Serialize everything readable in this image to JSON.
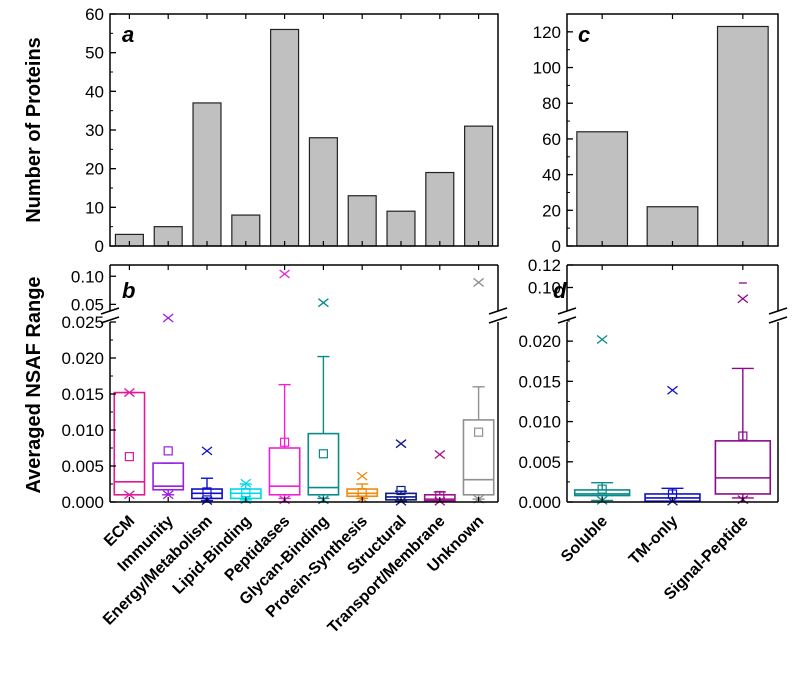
{
  "chart_data": [
    {
      "panel": "a",
      "type": "bar",
      "ylabel": "Number of Proteins",
      "ylim": [
        0,
        60
      ],
      "yticks": [
        0,
        10,
        20,
        30,
        40,
        50,
        60
      ],
      "categories": [
        "ECM",
        "Immunity",
        "Energy/Metabolism",
        "Lipid-Binding",
        "Peptidases",
        "Glycan-Binding",
        "Protein-Synthesis",
        "Structural",
        "Transport/Membrane",
        "Unknown"
      ],
      "values": [
        3,
        5,
        37,
        8,
        56,
        28,
        13,
        9,
        19,
        31
      ],
      "bar_color": "#c0c0c0"
    },
    {
      "panel": "b",
      "type": "box",
      "ylabel": "Averaged NSAF Range",
      "ylim_lower": [
        0,
        0.025
      ],
      "yticks_lower": [
        "0.000",
        "0.005",
        "0.010",
        "0.015",
        "0.020",
        "0.025"
      ],
      "ylim_upper": [
        0.04,
        0.12
      ],
      "yticks_upper": [
        "0.05",
        "0.10"
      ],
      "categories": [
        "ECM",
        "Immunity",
        "Energy/Metabolism",
        "Lipid-Binding",
        "Peptidases",
        "Glycan-Binding",
        "Protein-Synthesis",
        "Structural",
        "Transport/Membrane",
        "Unknown"
      ],
      "boxes": [
        {
          "q1": 0.001,
          "median": 0.0028,
          "q3": 0.0152,
          "wlo": 0.001,
          "whi": 0.0152,
          "mean": 0.0063,
          "xmin": 0.001,
          "xmax": 0.0152,
          "color": "#e0199a"
        },
        {
          "q1": 0.0017,
          "median": 0.0022,
          "q3": 0.0054,
          "wlo": 0.001,
          "whi": 0.0054,
          "mean": 0.0071,
          "xmin": 0.001,
          "xmax": 0.0258,
          "color": "#9b1fe0"
        },
        {
          "q1": 0.0005,
          "median": 0.0012,
          "q3": 0.0018,
          "wlo": 0.0002,
          "whi": 0.0033,
          "mean": 0.0014,
          "xmin": 0.0002,
          "xmax": 0.0071,
          "color": "#1010cc"
        },
        {
          "q1": 0.0005,
          "median": 0.0012,
          "q3": 0.0018,
          "wlo": 0.0003,
          "whi": 0.0025,
          "mean": 0.0013,
          "xmin": 0.0003,
          "xmax": 0.0026,
          "color": "#00d8e8"
        },
        {
          "q1": 0.001,
          "median": 0.0022,
          "q3": 0.0075,
          "wlo": 0.0005,
          "whi": 0.0163,
          "mean": 0.0083,
          "xmin": 0.0003,
          "xmax": 0.104,
          "color": "#f020d8"
        },
        {
          "q1": 0.001,
          "median": 0.002,
          "q3": 0.0095,
          "wlo": 0.0005,
          "whi": 0.0202,
          "mean": 0.0067,
          "xmin": 0.0003,
          "xmax": 0.053,
          "color": "#0a8a8a"
        },
        {
          "q1": 0.0008,
          "median": 0.0012,
          "q3": 0.0018,
          "wlo": 0.0005,
          "whi": 0.0025,
          "mean": 0.0013,
          "xmin": 0.0005,
          "xmax": 0.0036,
          "color": "#f08a10"
        },
        {
          "q1": 0.0003,
          "median": 0.0007,
          "q3": 0.0012,
          "wlo": 0.0001,
          "whi": 0.0015,
          "mean": 0.0016,
          "xmin": 0.0001,
          "xmax": 0.0081,
          "color": "#0c1a8c"
        },
        {
          "q1": 0.0002,
          "median": 0.0004,
          "q3": 0.001,
          "wlo": 0.0001,
          "whi": 0.0014,
          "mean": 0.0009,
          "xmin": 0.0001,
          "xmax": 0.0066,
          "color": "#a0108a"
        },
        {
          "q1": 0.001,
          "median": 0.0031,
          "q3": 0.0114,
          "wlo": 0.0004,
          "whi": 0.016,
          "mean": 0.0097,
          "xmin": 0.0004,
          "xmax": 0.089,
          "color": "#909090"
        }
      ]
    },
    {
      "panel": "c",
      "type": "bar",
      "ylim": [
        0,
        130
      ],
      "yticks": [
        0,
        20,
        40,
        60,
        80,
        100,
        120
      ],
      "categories": [
        "Soluble",
        "TM-only",
        "Signal-Peptide"
      ],
      "values": [
        64,
        22,
        123
      ],
      "bar_color": "#c0c0c0"
    },
    {
      "panel": "d",
      "type": "box",
      "ylim_lower": [
        0,
        0.023
      ],
      "yticks_lower": [
        "0.000",
        "0.005",
        "0.010",
        "0.015",
        "0.020"
      ],
      "ylim_upper": [
        0.08,
        0.12
      ],
      "yticks_upper": [
        "0.10",
        "0.12"
      ],
      "categories": [
        "Soluble",
        "TM-only",
        "Signal-Peptide"
      ],
      "boxes": [
        {
          "q1": 0.0008,
          "median": 0.001,
          "q3": 0.0015,
          "wlo": 0.0002,
          "whi": 0.0024,
          "mean": 0.0016,
          "xmin": 0.0002,
          "xmax": 0.0202,
          "color": "#0a8a8a"
        },
        {
          "q1": 0.0001,
          "median": 0.0005,
          "q3": 0.001,
          "wlo": 0.0001,
          "whi": 0.0017,
          "mean": 0.001,
          "xmin": 0.0001,
          "xmax": 0.0139,
          "color": "#1010cc"
        },
        {
          "q1": 0.001,
          "median": 0.003,
          "q3": 0.0076,
          "wlo": 0.0005,
          "whi": 0.0166,
          "mean": 0.0082,
          "xmin": 0.0003,
          "xmax": 0.09,
          "color": "#8a0a8a",
          "extra_max": 0.104
        }
      ]
    }
  ]
}
